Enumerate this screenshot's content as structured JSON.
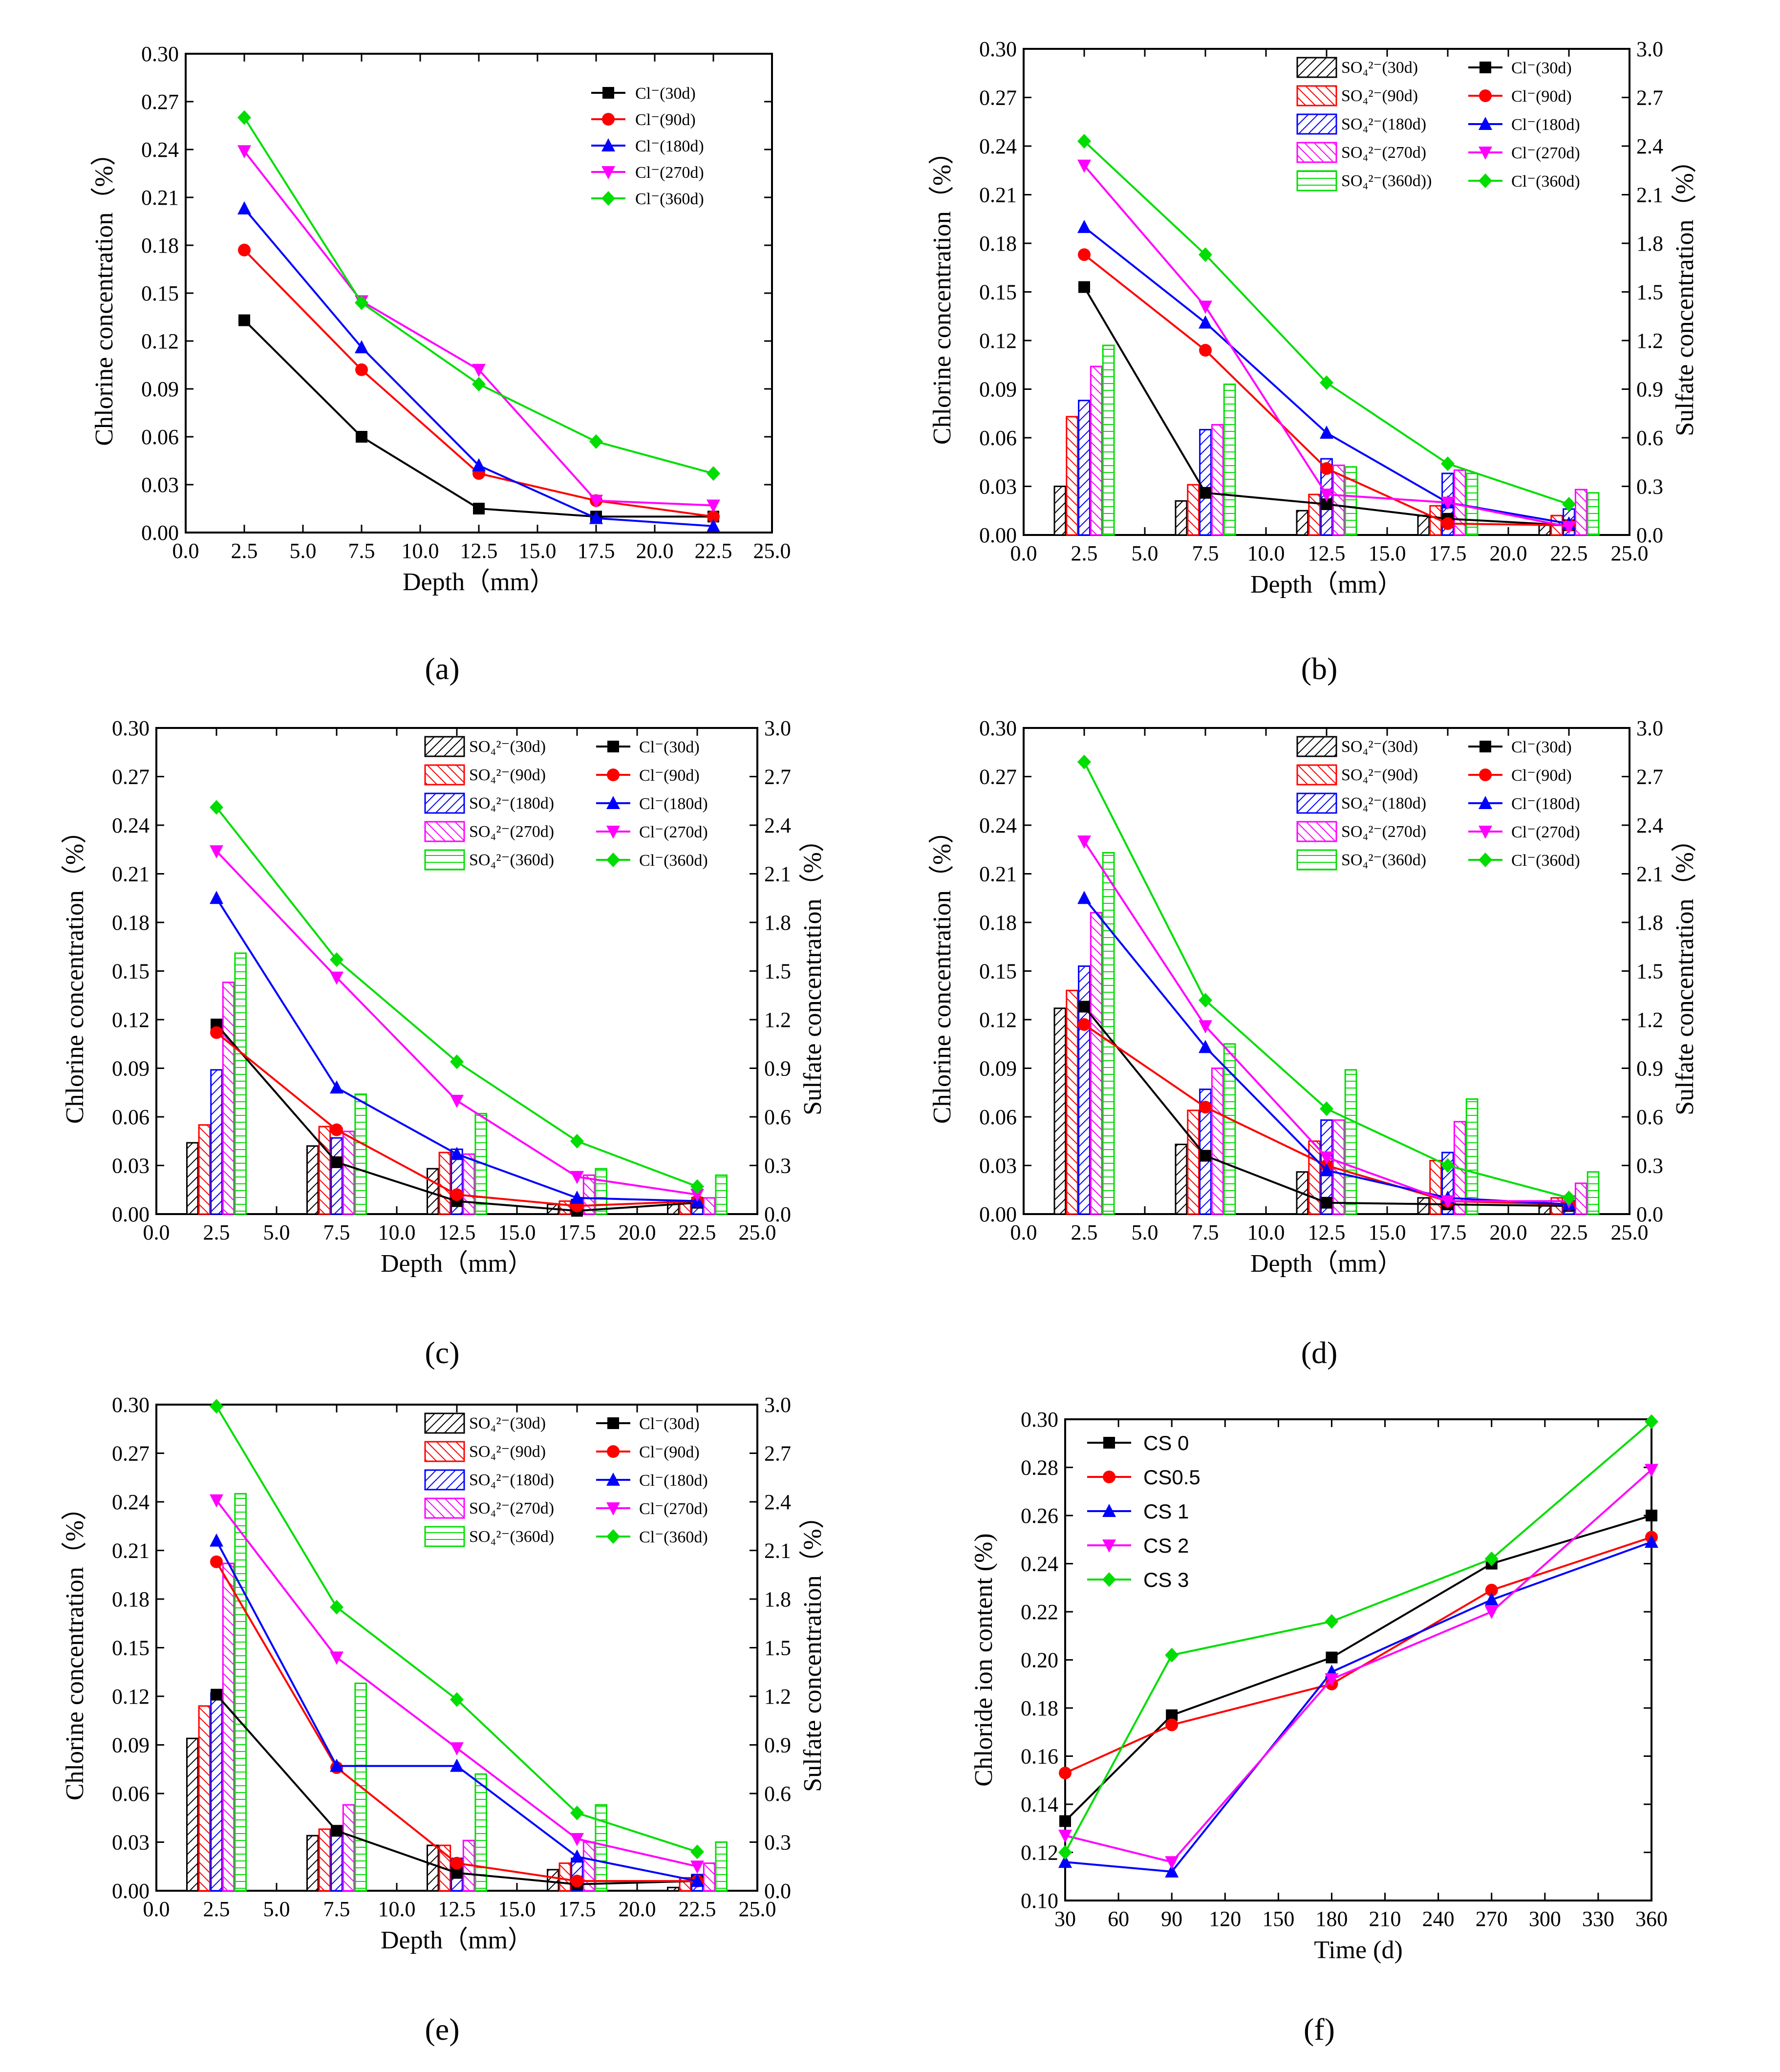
{
  "colors": {
    "black": "#000000",
    "red": "#ff0000",
    "blue": "#0000ff",
    "magenta": "#ff00ff",
    "green": "#00dd00"
  },
  "chart_data": [
    {
      "panel": "a",
      "caption": "(a)",
      "type": "line",
      "xlabel": "Depth（mm）",
      "ylabel": "Chlorine concentration（%）",
      "xlim": [
        0,
        25
      ],
      "ylim": [
        0,
        0.3
      ],
      "xticks": [
        "0.0",
        "2.5",
        "5.0",
        "7.5",
        "10.0",
        "12.5",
        "15.0",
        "17.5",
        "20.0",
        "22.5",
        "25.0"
      ],
      "yticks": [
        "0.00",
        "0.03",
        "0.06",
        "0.09",
        "0.12",
        "0.15",
        "0.18",
        "0.21",
        "0.24",
        "0.27",
        "0.30"
      ],
      "x": [
        2.5,
        7.5,
        12.5,
        17.5,
        22.5
      ],
      "legend_position": "top-right",
      "lines": [
        {
          "name": "Cl⁻(30d)",
          "color": "#000000",
          "marker": "square",
          "values": [
            0.133,
            0.06,
            0.015,
            0.01,
            0.01
          ]
        },
        {
          "name": "Cl⁻(90d)",
          "color": "#ff0000",
          "marker": "circle",
          "values": [
            0.177,
            0.102,
            0.037,
            0.02,
            0.01
          ]
        },
        {
          "name": "Cl⁻(180d)",
          "color": "#0000ff",
          "marker": "triangle-up",
          "values": [
            0.203,
            0.116,
            0.042,
            0.009,
            0.004
          ]
        },
        {
          "name": "Cl⁻(270d)",
          "color": "#ff00ff",
          "marker": "triangle-down",
          "values": [
            0.239,
            0.145,
            0.102,
            0.02,
            0.017
          ]
        },
        {
          "name": "Cl⁻(360d)",
          "color": "#00dd00",
          "marker": "diamond",
          "values": [
            0.26,
            0.144,
            0.093,
            0.057,
            0.037
          ]
        }
      ]
    },
    {
      "panel": "b",
      "caption": "(b)",
      "type": "bar+line",
      "xlabel": "Depth（mm）",
      "ylabel": "Chlorine concentration（%）",
      "y2label": "Sulfate concentration（%）",
      "xlim": [
        0,
        25
      ],
      "ylim": [
        0,
        0.3
      ],
      "y2lim": [
        0,
        3.0
      ],
      "xticks": [
        "0.0",
        "2.5",
        "5.0",
        "7.5",
        "10.0",
        "12.5",
        "15.0",
        "17.5",
        "20.0",
        "22.5",
        "25.0"
      ],
      "yticks": [
        "0.00",
        "0.03",
        "0.06",
        "0.09",
        "0.12",
        "0.15",
        "0.18",
        "0.21",
        "0.24",
        "0.27",
        "0.30"
      ],
      "y2ticks": [
        "0.0",
        "0.3",
        "0.6",
        "0.9",
        "1.2",
        "1.5",
        "1.8",
        "2.1",
        "2.4",
        "2.7",
        "3.0"
      ],
      "x": [
        2.5,
        7.5,
        12.5,
        17.5,
        22.5
      ],
      "legend_position": "top-right",
      "bars": [
        {
          "name": "SO₄²⁻(30d)",
          "color": "#000000",
          "values": [
            0.3,
            0.21,
            0.15,
            0.12,
            0.06
          ]
        },
        {
          "name": "SO₄²⁻(90d)",
          "color": "#ff0000",
          "values": [
            0.73,
            0.31,
            0.25,
            0.18,
            0.12
          ]
        },
        {
          "name": "SO₄²⁻(180d)",
          "color": "#0000ff",
          "values": [
            0.83,
            0.65,
            0.47,
            0.38,
            0.16
          ]
        },
        {
          "name": "SO₄²⁻(270d)",
          "color": "#ff00ff",
          "values": [
            1.04,
            0.68,
            0.43,
            0.4,
            0.28
          ]
        },
        {
          "name": "SO₄²⁻(360d))",
          "color": "#00dd00",
          "values": [
            1.17,
            0.93,
            0.42,
            0.38,
            0.26
          ]
        }
      ],
      "lines": [
        {
          "name": "Cl⁻(30d)",
          "color": "#000000",
          "marker": "square",
          "values": [
            0.153,
            0.026,
            0.019,
            0.01,
            0.006
          ]
        },
        {
          "name": "Cl⁻(90d)",
          "color": "#ff0000",
          "marker": "circle",
          "values": [
            0.173,
            0.114,
            0.041,
            0.007,
            0.006
          ]
        },
        {
          "name": "Cl⁻(180d)",
          "color": "#0000ff",
          "marker": "triangle-up",
          "values": [
            0.19,
            0.131,
            0.063,
            0.02,
            0.007
          ]
        },
        {
          "name": "Cl⁻(270d)",
          "color": "#ff00ff",
          "marker": "triangle-down",
          "values": [
            0.228,
            0.141,
            0.025,
            0.02,
            0.005
          ]
        },
        {
          "name": "Cl⁻(360d)",
          "color": "#00dd00",
          "marker": "diamond",
          "values": [
            0.243,
            0.173,
            0.094,
            0.044,
            0.019
          ]
        }
      ]
    },
    {
      "panel": "c",
      "caption": "(c)",
      "type": "bar+line",
      "xlabel": "Depth（mm）",
      "ylabel": "Chlorine concentration（%）",
      "y2label": "Sulfate concentration（%）",
      "xlim": [
        0,
        25
      ],
      "ylim": [
        0,
        0.3
      ],
      "y2lim": [
        0,
        3.0
      ],
      "xticks": [
        "0.0",
        "2.5",
        "5.0",
        "7.5",
        "10.0",
        "12.5",
        "15.0",
        "17.5",
        "20.0",
        "22.5",
        "25.0"
      ],
      "yticks": [
        "0.00",
        "0.03",
        "0.06",
        "0.09",
        "0.12",
        "0.15",
        "0.18",
        "0.21",
        "0.24",
        "0.27",
        "0.30"
      ],
      "y2ticks": [
        "0.0",
        "0.3",
        "0.6",
        "0.9",
        "1.2",
        "1.5",
        "1.8",
        "2.1",
        "2.4",
        "2.7",
        "3.0"
      ],
      "x": [
        2.5,
        7.5,
        12.5,
        17.5,
        22.5
      ],
      "legend_position": "top-right",
      "bars": [
        {
          "name": "SO₄²⁻(30d)",
          "color": "#000000",
          "values": [
            0.44,
            0.42,
            0.28,
            0.06,
            0.08
          ]
        },
        {
          "name": "SO₄²⁻(90d)",
          "color": "#ff0000",
          "values": [
            0.55,
            0.54,
            0.38,
            0.08,
            0.08
          ]
        },
        {
          "name": "SO₄²⁻(180d)",
          "color": "#0000ff",
          "values": [
            0.89,
            0.47,
            0.4,
            0.09,
            0.09
          ]
        },
        {
          "name": "SO₄²⁻(270d)",
          "color": "#ff00ff",
          "values": [
            1.43,
            0.51,
            0.37,
            0.24,
            0.1
          ]
        },
        {
          "name": "SO₄²⁻(360d)",
          "color": "#00dd00",
          "values": [
            1.61,
            0.74,
            0.62,
            0.28,
            0.24
          ]
        }
      ],
      "lines": [
        {
          "name": "Cl⁻(30d)",
          "color": "#000000",
          "marker": "square",
          "values": [
            0.117,
            0.032,
            0.008,
            0.002,
            0.007
          ]
        },
        {
          "name": "Cl⁻(90d)",
          "color": "#ff0000",
          "marker": "circle",
          "values": [
            0.112,
            0.052,
            0.012,
            0.005,
            0.008
          ]
        },
        {
          "name": "Cl⁻(180d)",
          "color": "#0000ff",
          "marker": "triangle-up",
          "values": [
            0.195,
            0.078,
            0.037,
            0.01,
            0.008
          ]
        },
        {
          "name": "Cl⁻(270d)",
          "color": "#ff00ff",
          "marker": "triangle-down",
          "values": [
            0.224,
            0.146,
            0.07,
            0.023,
            0.012
          ]
        },
        {
          "name": "Cl⁻(360d)",
          "color": "#00dd00",
          "marker": "diamond",
          "values": [
            0.251,
            0.157,
            0.094,
            0.045,
            0.017
          ]
        }
      ]
    },
    {
      "panel": "d",
      "caption": "(d)",
      "type": "bar+line",
      "xlabel": "Depth（mm）",
      "ylabel": "Chlorine concentration（%）",
      "y2label": "Sulfate concentration（%）",
      "xlim": [
        0,
        25
      ],
      "ylim": [
        0,
        0.3
      ],
      "y2lim": [
        0,
        3.0
      ],
      "xticks": [
        "0.0",
        "2.5",
        "5.0",
        "7.5",
        "10.0",
        "12.5",
        "15.0",
        "17.5",
        "20.0",
        "22.5",
        "25.0"
      ],
      "yticks": [
        "0.00",
        "0.03",
        "0.06",
        "0.09",
        "0.12",
        "0.15",
        "0.18",
        "0.21",
        "0.24",
        "0.27",
        "0.30"
      ],
      "y2ticks": [
        "0.0",
        "0.3",
        "0.6",
        "0.9",
        "1.2",
        "1.5",
        "1.8",
        "2.1",
        "2.4",
        "2.7",
        "3.0"
      ],
      "x": [
        2.5,
        7.5,
        12.5,
        17.5,
        22.5
      ],
      "legend_position": "top-right",
      "bars": [
        {
          "name": "SO₄²⁻(30d)",
          "color": "#000000",
          "values": [
            1.27,
            0.43,
            0.26,
            0.1,
            0.06
          ]
        },
        {
          "name": "SO₄²⁻(90d)",
          "color": "#ff0000",
          "values": [
            1.38,
            0.64,
            0.45,
            0.33,
            0.1
          ]
        },
        {
          "name": "SO₄²⁻(180d)",
          "color": "#0000ff",
          "values": [
            1.53,
            0.77,
            0.58,
            0.38,
            0.08
          ]
        },
        {
          "name": "SO₄²⁻(270d)",
          "color": "#ff00ff",
          "values": [
            1.86,
            0.9,
            0.58,
            0.57,
            0.19
          ]
        },
        {
          "name": "SO₄²⁻(360d)",
          "color": "#00dd00",
          "values": [
            2.23,
            1.05,
            0.89,
            0.71,
            0.26
          ]
        }
      ],
      "lines": [
        {
          "name": "Cl⁻(30d)",
          "color": "#000000",
          "marker": "square",
          "values": [
            0.128,
            0.036,
            0.007,
            0.006,
            0.005
          ]
        },
        {
          "name": "Cl⁻(90d)",
          "color": "#ff0000",
          "marker": "circle",
          "values": [
            0.117,
            0.066,
            0.03,
            0.008,
            0.006
          ]
        },
        {
          "name": "Cl⁻(180d)",
          "color": "#0000ff",
          "marker": "triangle-up",
          "values": [
            0.195,
            0.103,
            0.027,
            0.01,
            0.006
          ]
        },
        {
          "name": "Cl⁻(270d)",
          "color": "#ff00ff",
          "marker": "triangle-down",
          "values": [
            0.23,
            0.116,
            0.035,
            0.008,
            0.008
          ]
        },
        {
          "name": "Cl⁻(360d)",
          "color": "#00dd00",
          "marker": "diamond",
          "values": [
            0.279,
            0.132,
            0.065,
            0.03,
            0.01
          ]
        }
      ]
    },
    {
      "panel": "e",
      "caption": "(e)",
      "type": "bar+line",
      "xlabel": "Depth（mm）",
      "ylabel": "Chlorine concentration（%）",
      "y2label": "Sulfate concentration（%）",
      "xlim": [
        0,
        25
      ],
      "ylim": [
        0,
        0.3
      ],
      "y2lim": [
        0,
        3.0
      ],
      "xticks": [
        "0.0",
        "2.5",
        "5.0",
        "7.5",
        "10.0",
        "12.5",
        "15.0",
        "17.5",
        "20.0",
        "22.5",
        "25.0"
      ],
      "yticks": [
        "0.00",
        "0.03",
        "0.06",
        "0.09",
        "0.12",
        "0.15",
        "0.18",
        "0.21",
        "0.24",
        "0.27",
        "0.30"
      ],
      "y2ticks": [
        "0.0",
        "0.3",
        "0.6",
        "0.9",
        "1.2",
        "1.5",
        "1.8",
        "2.1",
        "2.4",
        "2.7",
        "3.0"
      ],
      "x": [
        2.5,
        7.5,
        12.5,
        17.5,
        22.5
      ],
      "legend_position": "top-right",
      "bars": [
        {
          "name": "SO₄²⁻(30d)",
          "color": "#000000",
          "values": [
            0.94,
            0.34,
            0.28,
            0.13,
            0.02
          ]
        },
        {
          "name": "SO₄²⁻(90d)",
          "color": "#ff0000",
          "values": [
            1.14,
            0.38,
            0.28,
            0.17,
            0.08
          ]
        },
        {
          "name": "SO₄²⁻(180d)",
          "color": "#0000ff",
          "values": [
            1.22,
            0.37,
            0.2,
            0.2,
            0.1
          ]
        },
        {
          "name": "SO₄²⁻(270d)",
          "color": "#ff00ff",
          "values": [
            2.02,
            0.53,
            0.31,
            0.3,
            0.17
          ]
        },
        {
          "name": "SO₄²⁻(360d)",
          "color": "#00dd00",
          "values": [
            2.45,
            1.28,
            0.72,
            0.53,
            0.3
          ]
        }
      ],
      "lines": [
        {
          "name": "Cl⁻(30d)",
          "color": "#000000",
          "marker": "square",
          "values": [
            0.121,
            0.037,
            0.011,
            0.004,
            0.006
          ]
        },
        {
          "name": "Cl⁻(90d)",
          "color": "#ff0000",
          "marker": "circle",
          "values": [
            0.203,
            0.076,
            0.017,
            0.006,
            0.006
          ]
        },
        {
          "name": "Cl⁻(180d)",
          "color": "#0000ff",
          "marker": "triangle-up",
          "values": [
            0.216,
            0.077,
            0.077,
            0.021,
            0.006
          ]
        },
        {
          "name": "Cl⁻(270d)",
          "color": "#ff00ff",
          "marker": "triangle-down",
          "values": [
            0.241,
            0.144,
            0.088,
            0.032,
            0.015
          ]
        },
        {
          "name": "Cl⁻(360d)",
          "color": "#00dd00",
          "marker": "diamond",
          "values": [
            0.299,
            0.175,
            0.118,
            0.048,
            0.024
          ]
        }
      ]
    },
    {
      "panel": "f",
      "caption": "(f)",
      "type": "line",
      "xlabel": "Time (d)",
      "ylabel": "Chloride ion content (%)",
      "xlim": [
        30,
        360
      ],
      "ylim": [
        0.1,
        0.3
      ],
      "xticks": [
        "30",
        "60",
        "90",
        "120",
        "150",
        "180",
        "210",
        "240",
        "270",
        "300",
        "330",
        "360"
      ],
      "yticks": [
        "0.10",
        "0.12",
        "0.14",
        "0.16",
        "0.18",
        "0.20",
        "0.22",
        "0.24",
        "0.26",
        "0.28",
        "0.30"
      ],
      "x": [
        30,
        90,
        180,
        270,
        360
      ],
      "legend_position": "top-left",
      "lines": [
        {
          "name": "CS 0",
          "color": "#000000",
          "marker": "square",
          "values": [
            0.133,
            0.177,
            0.201,
            0.24,
            0.26
          ]
        },
        {
          "name": "CS0.5",
          "color": "#ff0000",
          "marker": "circle",
          "values": [
            0.153,
            0.173,
            0.19,
            0.229,
            0.251
          ]
        },
        {
          "name": "CS 1",
          "color": "#0000ff",
          "marker": "triangle-up",
          "values": [
            0.116,
            0.112,
            0.195,
            0.225,
            0.249
          ]
        },
        {
          "name": "CS 2",
          "color": "#ff00ff",
          "marker": "triangle-down",
          "values": [
            0.127,
            0.116,
            0.192,
            0.22,
            0.279
          ]
        },
        {
          "name": "CS 3",
          "color": "#00dd00",
          "marker": "diamond",
          "values": [
            0.12,
            0.202,
            0.216,
            0.242,
            0.299
          ]
        }
      ]
    }
  ]
}
